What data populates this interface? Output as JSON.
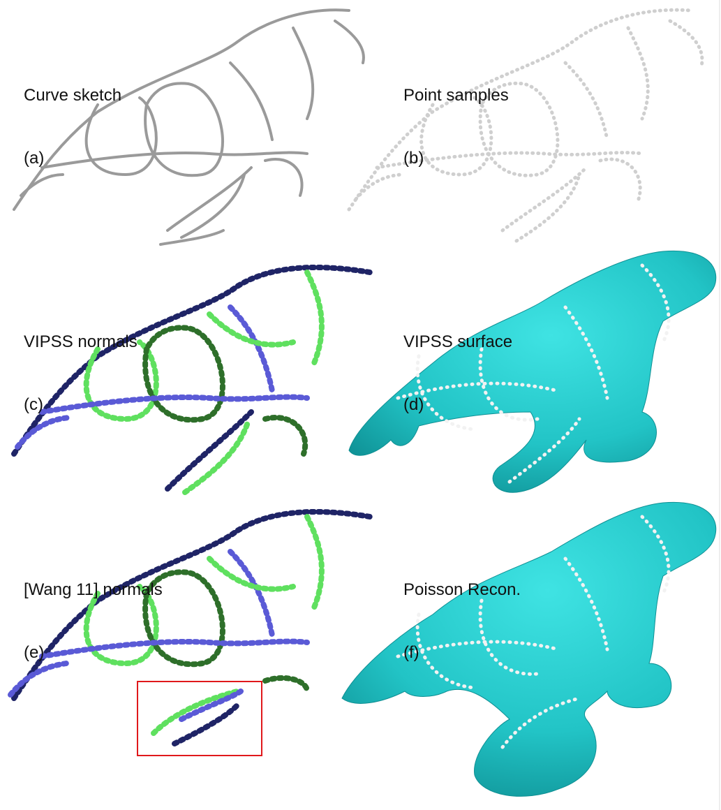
{
  "panels": {
    "a": {
      "title": "Curve sketch",
      "tag": "(a)"
    },
    "b": {
      "title": "Point samples",
      "tag": "(b)"
    },
    "c": {
      "title": "VIPSS normals",
      "tag": "(c)"
    },
    "d": {
      "title": "VIPSS surface",
      "tag": "(d)"
    },
    "e": {
      "title": "[Wang 11] normals",
      "tag": "(e)"
    },
    "f": {
      "title": "Poisson Recon.",
      "tag": "(f)"
    }
  },
  "colors": {
    "curve_stroke": "#9a9a9a",
    "point_fill": "#cfcfcf",
    "surface_fill": "#22c4c6",
    "surface_shade": "#0e8f93",
    "normal_dark_blue": "#1f2466",
    "normal_blue": "#5a5ad6",
    "normal_light_green": "#5fe05f",
    "normal_dark_green": "#2e6f2a",
    "highlight_box": "#e0181b"
  }
}
